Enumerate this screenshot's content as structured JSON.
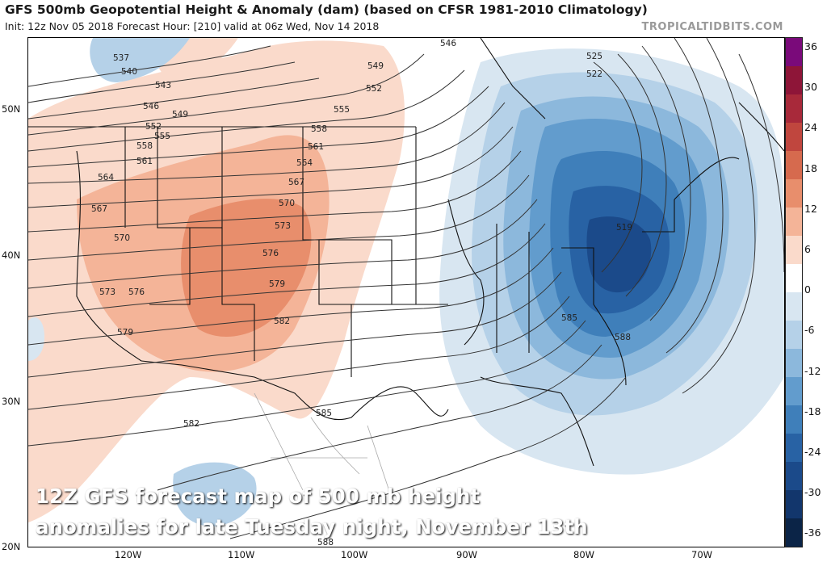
{
  "header": {
    "title": "GFS 500mb Geopotential Height & Anomaly (dam) (based on CFSR 1981-2010 Climatology)",
    "subtitle": "Init: 12z Nov 05 2018   Forecast Hour: [210]   valid at 06z Wed, Nov 14 2018",
    "brand": "TROPICALTIDBITS.COM"
  },
  "caption": {
    "line1": "12Z GFS forecast map of 500 mb height",
    "line2": "anomalies for late Tuesday night, November 13th"
  },
  "axes": {
    "latitudes": [
      "50N",
      "40N",
      "30N",
      "20N"
    ],
    "longitudes": [
      "120W",
      "110W",
      "100W",
      "90W",
      "80W",
      "70W"
    ]
  },
  "colorbar": {
    "ticks": [
      "36",
      "30",
      "24",
      "18",
      "12",
      "6",
      "0",
      "-6",
      "-12",
      "-18",
      "-24",
      "-30",
      "-36"
    ],
    "colors": [
      "#7a0a7a",
      "#8e1538",
      "#a8293a",
      "#c0463e",
      "#d66a4e",
      "#e88e6c",
      "#f4b498",
      "#fadacb",
      "#ffffff",
      "#d8e6f1",
      "#b5d1e8",
      "#8cb8dc",
      "#629ccd",
      "#3f7fba",
      "#2862a4",
      "#1b4a8a",
      "#12366c",
      "#0b2447"
    ]
  },
  "map": {
    "contour_labels": [
      "537",
      "540",
      "543",
      "546",
      "549",
      "552",
      "555",
      "558",
      "561",
      "564",
      "567",
      "570",
      "573",
      "576",
      "579",
      "582",
      "585",
      "588",
      "525",
      "522",
      "519",
      "546",
      "549",
      "552",
      "555",
      "558",
      "561",
      "564",
      "567",
      "570",
      "573",
      "576",
      "579",
      "582",
      "585",
      "588"
    ]
  }
}
